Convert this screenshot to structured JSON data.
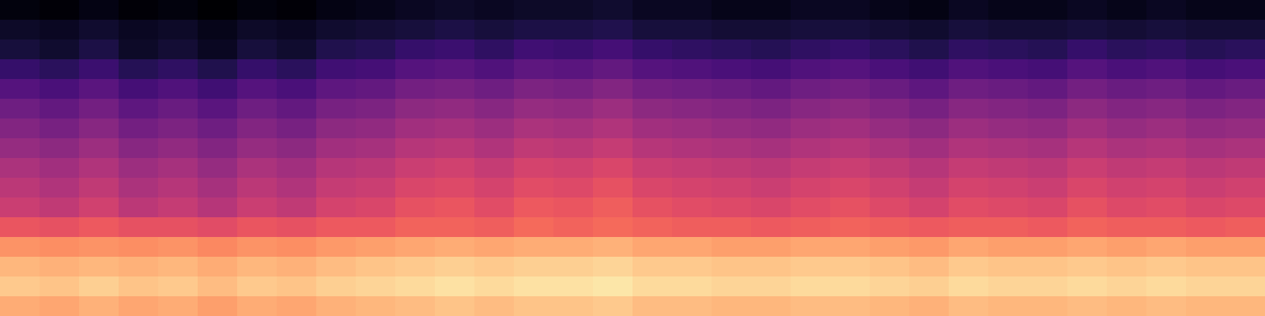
{
  "chart_data": {
    "type": "heatmap",
    "color": "magma",
    "tick_labels": false,
    "color_range": [
      -80,
      0
    ],
    "cells": [
      [
        -78,
        -79,
        -77,
        -79,
        -78,
        -80,
        -78,
        -79,
        -77,
        -76,
        -75,
        -74,
        -75,
        -74,
        -74,
        -73,
        -75,
        -75,
        -76,
        -76,
        -75,
        -75,
        -76,
        -77,
        -75,
        -76,
        -76,
        -75,
        -76,
        -75,
        -76,
        -76
      ],
      [
        -74,
        -75,
        -73,
        -75,
        -74,
        -76,
        -74,
        -75,
        -73,
        -72,
        -71,
        -70,
        -71,
        -70,
        -70,
        -69,
        -71,
        -71,
        -72,
        -72,
        -71,
        -71,
        -72,
        -73,
        -71,
        -72,
        -72,
        -71,
        -72,
        -71,
        -72,
        -72
      ],
      [
        -71,
        -73,
        -70,
        -74,
        -72,
        -75,
        -71,
        -73,
        -69,
        -68,
        -65,
        -64,
        -66,
        -63,
        -64,
        -62,
        -65,
        -66,
        -67,
        -68,
        -66,
        -65,
        -67,
        -69,
        -66,
        -67,
        -68,
        -65,
        -67,
        -66,
        -68,
        -67
      ],
      [
        -65,
        -67,
        -64,
        -68,
        -66,
        -69,
        -65,
        -67,
        -63,
        -62,
        -59,
        -58,
        -60,
        -57,
        -58,
        -56,
        -59,
        -60,
        -61,
        -62,
        -60,
        -59,
        -61,
        -63,
        -60,
        -61,
        -62,
        -59,
        -61,
        -60,
        -62,
        -61
      ],
      [
        -59,
        -61,
        -58,
        -62,
        -60,
        -63,
        -59,
        -61,
        -57,
        -56,
        -53,
        -52,
        -54,
        -51,
        -52,
        -50,
        -53,
        -54,
        -55,
        -56,
        -54,
        -53,
        -55,
        -57,
        -54,
        -55,
        -56,
        -53,
        -55,
        -54,
        -56,
        -55
      ],
      [
        -54,
        -56,
        -53,
        -57,
        -55,
        -58,
        -54,
        -56,
        -52,
        -51,
        -48,
        -47,
        -49,
        -46,
        -47,
        -45,
        -48,
        -49,
        -50,
        -51,
        -49,
        -48,
        -50,
        -52,
        -49,
        -50,
        -51,
        -48,
        -50,
        -49,
        -51,
        -50
      ],
      [
        -50,
        -52,
        -49,
        -53,
        -51,
        -54,
        -50,
        -52,
        -48,
        -47,
        -44,
        -43,
        -45,
        -42,
        -43,
        -41,
        -44,
        -45,
        -46,
        -47,
        -45,
        -44,
        -46,
        -48,
        -45,
        -46,
        -47,
        -44,
        -46,
        -45,
        -47,
        -46
      ],
      [
        -46,
        -48,
        -45,
        -49,
        -47,
        -50,
        -46,
        -48,
        -44,
        -43,
        -40,
        -39,
        -41,
        -38,
        -39,
        -37,
        -40,
        -41,
        -42,
        -43,
        -41,
        -40,
        -42,
        -44,
        -41,
        -42,
        -43,
        -40,
        -42,
        -41,
        -43,
        -42
      ],
      [
        -42,
        -44,
        -41,
        -45,
        -43,
        -46,
        -42,
        -44,
        -40,
        -39,
        -36,
        -35,
        -37,
        -34,
        -35,
        -33,
        -36,
        -37,
        -38,
        -39,
        -37,
        -36,
        -38,
        -40,
        -37,
        -38,
        -39,
        -36,
        -38,
        -37,
        -39,
        -38
      ],
      [
        -39,
        -41,
        -38,
        -42,
        -40,
        -43,
        -39,
        -41,
        -37,
        -36,
        -33,
        -32,
        -34,
        -31,
        -32,
        -30,
        -33,
        -34,
        -35,
        -36,
        -34,
        -33,
        -35,
        -37,
        -34,
        -35,
        -36,
        -33,
        -35,
        -34,
        -36,
        -35
      ],
      [
        -36,
        -38,
        -35,
        -39,
        -37,
        -40,
        -36,
        -38,
        -34,
        -33,
        -30,
        -29,
        -31,
        -28,
        -29,
        -27,
        -30,
        -31,
        -32,
        -33,
        -31,
        -30,
        -32,
        -34,
        -31,
        -32,
        -33,
        -30,
        -32,
        -31,
        -33,
        -32
      ],
      [
        -29,
        -30,
        -28,
        -30,
        -30,
        -31,
        -29,
        -30,
        -28,
        -28,
        -26,
        -26,
        -27,
        -25,
        -26,
        -25,
        -26,
        -27,
        -27,
        -28,
        -27,
        -26,
        -27,
        -28,
        -27,
        -27,
        -28,
        -26,
        -27,
        -27,
        -28,
        -27
      ],
      [
        -18,
        -19,
        -18,
        -19,
        -18,
        -20,
        -18,
        -19,
        -17,
        -16,
        -15,
        -14,
        -15,
        -14,
        -14,
        -13,
        -15,
        -15,
        -16,
        -16,
        -15,
        -15,
        -16,
        -17,
        -15,
        -16,
        -16,
        -15,
        -16,
        -15,
        -16,
        -16
      ],
      [
        -12,
        -13,
        -12,
        -13,
        -12,
        -14,
        -12,
        -13,
        -11,
        -10,
        -9,
        -8,
        -9,
        -8,
        -8,
        -7,
        -9,
        -9,
        -10,
        -10,
        -9,
        -9,
        -10,
        -11,
        -9,
        -10,
        -10,
        -9,
        -10,
        -9,
        -10,
        -10
      ],
      [
        -9,
        -10,
        -8,
        -10,
        -9,
        -11,
        -9,
        -10,
        -8,
        -7,
        -6,
        -5,
        -6,
        -5,
        -5,
        -4,
        -6,
        -6,
        -7,
        -7,
        -6,
        -6,
        -7,
        -8,
        -6,
        -7,
        -7,
        -6,
        -7,
        -6,
        -7,
        -7
      ],
      [
        -14,
        -15,
        -13,
        -15,
        -14,
        -16,
        -14,
        -15,
        -13,
        -12,
        -11,
        -10,
        -11,
        -10,
        -10,
        -9,
        -11,
        -11,
        -12,
        -12,
        -11,
        -11,
        -12,
        -13,
        -11,
        -12,
        -12,
        -11,
        -12,
        -11,
        -12,
        -12
      ]
    ]
  }
}
